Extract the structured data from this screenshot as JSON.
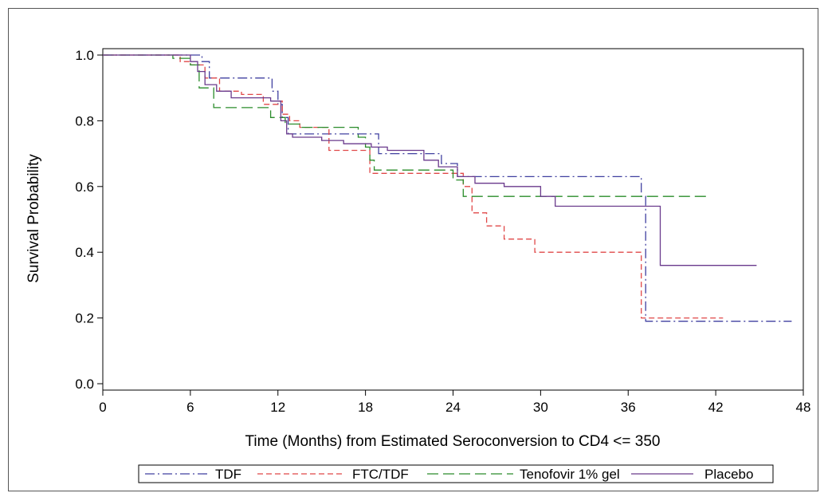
{
  "chart_data": {
    "type": "line",
    "step": true,
    "xlabel": "Time (Months) from Estimated Seroconversion to CD4 <= 350",
    "ylabel": "Survival Probability",
    "xlim": [
      0,
      48
    ],
    "ylim": [
      0,
      1
    ],
    "xticks": [
      "0",
      "6",
      "12",
      "18",
      "24",
      "30",
      "36",
      "42",
      "48"
    ],
    "yticks": [
      "0.0",
      "0.2",
      "0.4",
      "0.6",
      "0.8",
      "1.0"
    ],
    "grid": false,
    "legend": "bottom",
    "series": [
      {
        "name": "TDF",
        "color": "#4040a0",
        "dash": "dash-dot",
        "x": [
          0,
          6.5,
          6.8,
          7.3,
          11.0,
          11.6,
          12.0,
          12.3,
          12.7,
          18.5,
          18.9,
          22.5,
          23.2,
          24.3,
          31.5,
          36.9,
          37.2,
          47.2
        ],
        "y": [
          1.0,
          1.0,
          0.98,
          0.93,
          0.93,
          0.89,
          0.85,
          0.81,
          0.76,
          0.76,
          0.7,
          0.7,
          0.67,
          0.63,
          0.63,
          0.57,
          0.19,
          0.19
        ]
      },
      {
        "name": "FTC/TDF",
        "color": "#e04848",
        "dash": "dashed",
        "x": [
          0,
          5.3,
          6.0,
          7.0,
          8.0,
          9.5,
          11.0,
          12.0,
          12.3,
          12.8,
          13.5,
          15.5,
          18.0,
          18.3,
          24.0,
          24.7,
          25.3,
          26.3,
          27.5,
          29.6,
          36.7,
          36.9,
          42.5
        ],
        "y": [
          1.0,
          0.98,
          0.97,
          0.93,
          0.89,
          0.88,
          0.85,
          0.86,
          0.82,
          0.8,
          0.78,
          0.71,
          0.71,
          0.64,
          0.64,
          0.6,
          0.52,
          0.48,
          0.44,
          0.4,
          0.4,
          0.2,
          0.2
        ]
      },
      {
        "name": "Tenofovir 1% gel",
        "color": "#2a8c2a",
        "dash": "long-dash",
        "x": [
          0,
          4.8,
          6.0,
          6.6,
          7.6,
          10.0,
          11.5,
          12.5,
          13.5,
          14.5,
          17.5,
          18.0,
          18.3,
          18.6,
          24.0,
          24.7,
          31.5,
          41.5
        ],
        "y": [
          1.0,
          0.99,
          0.97,
          0.9,
          0.84,
          0.84,
          0.81,
          0.79,
          0.78,
          0.78,
          0.75,
          0.72,
          0.68,
          0.65,
          0.62,
          0.57,
          0.57,
          0.57
        ]
      },
      {
        "name": "Placebo",
        "color": "#6a3a8c",
        "dash": "solid",
        "x": [
          0,
          6.0,
          6.5,
          7.0,
          7.8,
          8.8,
          11.5,
          12.2,
          12.6,
          13.0,
          15.0,
          16.5,
          18.4,
          19.5,
          22.0,
          23.0,
          24.3,
          25.5,
          27.5,
          30.0,
          31.0,
          38.2,
          44.8
        ],
        "y": [
          1.0,
          0.98,
          0.95,
          0.91,
          0.89,
          0.87,
          0.86,
          0.8,
          0.76,
          0.75,
          0.74,
          0.73,
          0.72,
          0.71,
          0.68,
          0.66,
          0.63,
          0.61,
          0.6,
          0.57,
          0.54,
          0.36,
          0.36
        ]
      }
    ]
  }
}
